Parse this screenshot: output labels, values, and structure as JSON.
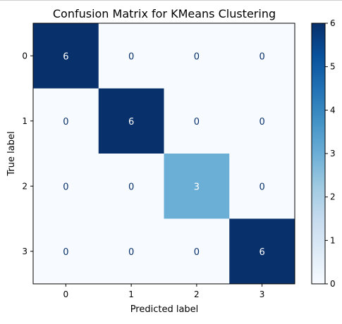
{
  "chart_data": {
    "type": "heatmap",
    "title": "Confusion Matrix for KMeans Clustering",
    "xlabel": "Predicted label",
    "ylabel": "True label",
    "x_tick_labels": [
      "0",
      "1",
      "2",
      "3"
    ],
    "y_tick_labels": [
      "0",
      "1",
      "2",
      "3"
    ],
    "matrix": [
      [
        6,
        0,
        0,
        0
      ],
      [
        0,
        6,
        0,
        0
      ],
      [
        0,
        0,
        3,
        0
      ],
      [
        0,
        0,
        0,
        6
      ]
    ],
    "colormap": "Blues",
    "colorbar": {
      "range": [
        0,
        6
      ],
      "ticks": [
        "0",
        "1",
        "2",
        "3",
        "4",
        "5",
        "6"
      ],
      "placement": "right"
    },
    "cell_text_color_dark": "#08306b",
    "cell_text_color_light": "#ffffff"
  }
}
